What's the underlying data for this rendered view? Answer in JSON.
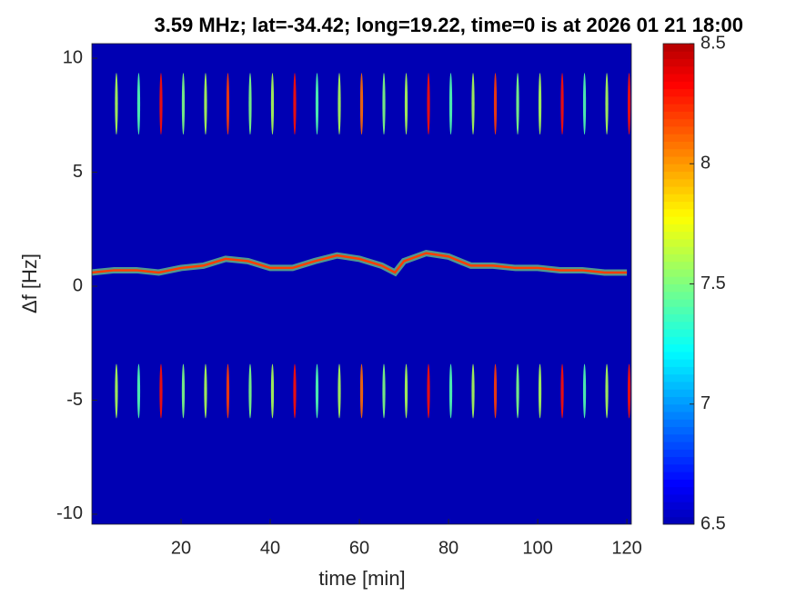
{
  "chart_data": {
    "type": "heatmap",
    "title": "3.59 MHz;  lat=-34.42; long=19.22, time=0 is at 2026 01 21 18:00",
    "xlabel": "time [min]",
    "ylabel": "Δf [Hz]",
    "xlim": [
      0,
      121
    ],
    "xticks": [
      20,
      40,
      60,
      80,
      100,
      120
    ],
    "ylim": [
      -10.44,
      10.64
    ],
    "yticks": [
      -10,
      -5,
      0,
      5,
      10
    ],
    "background": 6.5,
    "colorbar": {
      "colormap": "jet",
      "clim": [
        6.5,
        8.5
      ],
      "ticks": [
        6.5,
        7,
        7.5,
        8,
        8.5
      ]
    },
    "ridge": {
      "x": [
        0,
        5,
        10,
        15,
        20,
        25,
        30,
        35,
        40,
        45,
        50,
        55,
        60,
        65,
        68,
        70,
        75,
        80,
        85,
        90,
        95,
        100,
        105,
        110,
        115,
        120
      ],
      "y": [
        0.6,
        0.7,
        0.7,
        0.6,
        0.8,
        0.9,
        1.2,
        1.1,
        0.8,
        0.8,
        1.1,
        1.35,
        1.2,
        0.9,
        0.6,
        1.1,
        1.45,
        1.3,
        0.9,
        0.9,
        0.8,
        0.8,
        0.7,
        0.7,
        0.6,
        0.6
      ],
      "level": 8.2
    },
    "spikes": {
      "upper": 8,
      "lower": -4.6,
      "x": [
        5.5,
        10.5,
        15.5,
        20.5,
        25.5,
        30.5,
        35.5,
        40.5,
        45.5,
        50.5,
        55.5,
        60.5,
        65.5,
        70.5,
        75.5,
        80.5,
        85.5,
        90.5,
        95.5,
        100.5,
        105.5,
        110.5,
        115.5,
        120.5
      ],
      "levels": [
        7.6,
        7.4,
        8.3,
        7.5,
        7.6,
        8.2,
        7.5,
        7.6,
        8.3,
        7.4,
        7.6,
        8.1,
        7.5,
        7.6,
        8.3,
        7.4,
        7.6,
        8.2,
        7.5,
        7.6,
        8.3,
        7.4,
        7.6,
        8.3
      ]
    }
  }
}
